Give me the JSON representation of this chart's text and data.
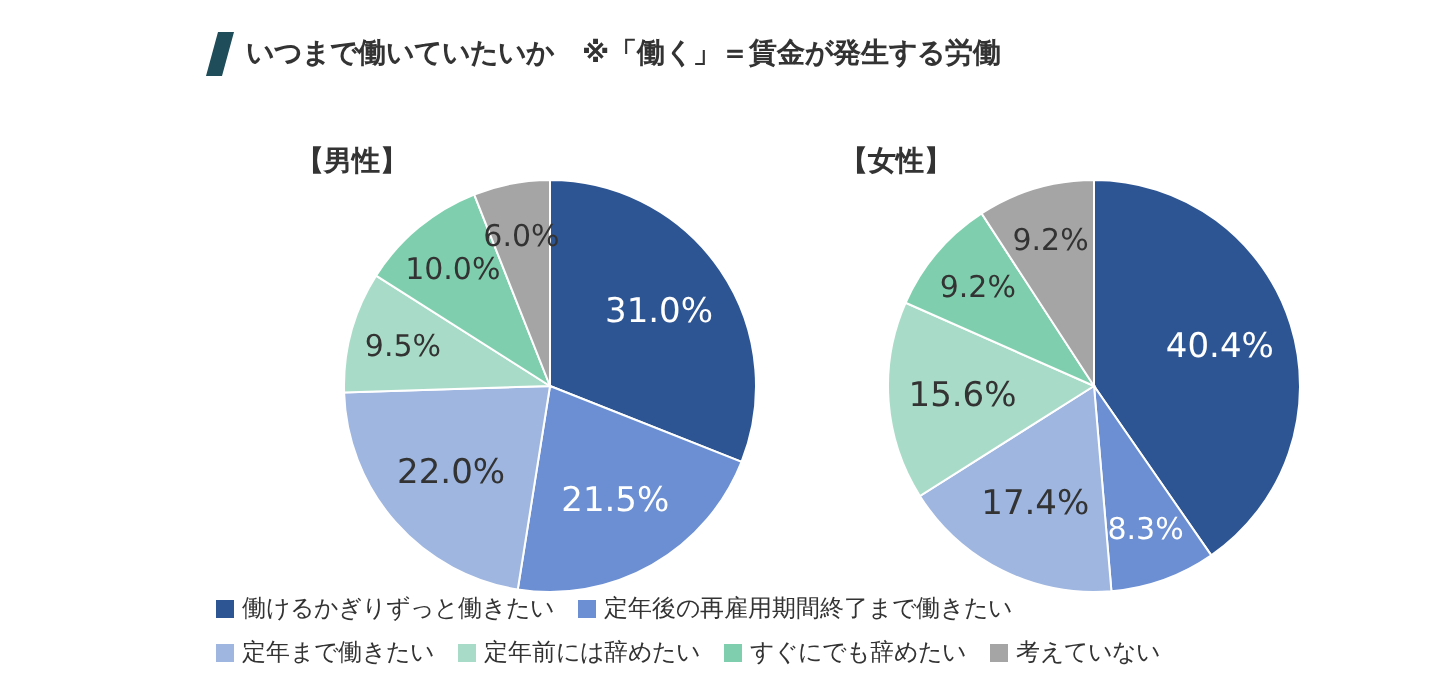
{
  "chart_data": [
    {
      "type": "pie",
      "title": "いつまで働いていたいか　※「働く」＝賃金が発生する労働",
      "subtitle": "【男性】",
      "categories": [
        "働けるかぎりずっと働きたい",
        "定年後の再雇用期間終了まで働きたい",
        "定年まで働きたい",
        "定年前には辞めたい",
        "すぐにでも辞めたい",
        "考えていない"
      ],
      "values": [
        31.0,
        21.5,
        22.0,
        9.5,
        10.0,
        6.0
      ],
      "value_labels": [
        "31.0%",
        "21.5%",
        "22.0%",
        "9.5%",
        "10.0%",
        "6.0%"
      ],
      "colors": [
        "#2e5593",
        "#6b8fd2",
        "#9eb6e0",
        "#a9dcc8",
        "#7fcfae",
        "#a5a5a5"
      ],
      "legend": "bottom"
    },
    {
      "type": "pie",
      "subtitle": "【女性】",
      "categories": [
        null,
        null,
        null,
        null,
        null,
        null
      ],
      "values": [
        40.4,
        8.3,
        17.4,
        15.6,
        9.2,
        9.2
      ],
      "value_labels": [
        "40.4%",
        "8.3%",
        "17.4%",
        "15.6%",
        "9.2%",
        "9.2%"
      ],
      "colors": [
        "#2e5593",
        "#6b8fd2",
        "#9eb6e0",
        "#a9dcc8",
        "#7fcfae",
        "#a5a5a5"
      ]
    }
  ]
}
